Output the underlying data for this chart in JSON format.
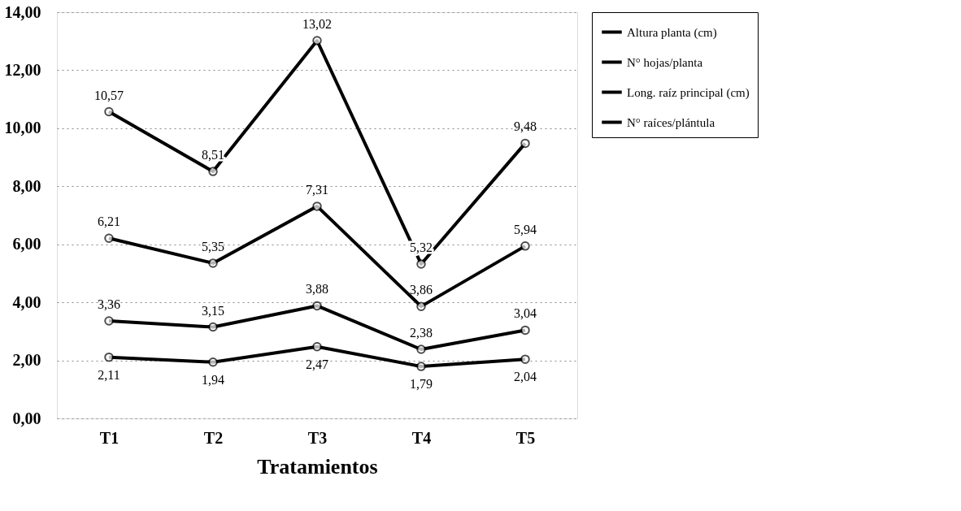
{
  "chart_data": {
    "type": "line",
    "xlabel": "Tratamientos",
    "categories": [
      "T1",
      "T2",
      "T3",
      "T4",
      "T5"
    ],
    "series": [
      {
        "name": "Altura planta (cm)",
        "color": "#000000",
        "values": [
          10.57,
          8.51,
          13.02,
          5.32,
          9.48
        ],
        "value_labels": [
          "10,57",
          "8,51",
          "13,02",
          "5,32",
          "9,48"
        ]
      },
      {
        "name": "N° hojas/planta",
        "color": "#000000",
        "values": [
          6.21,
          5.35,
          7.31,
          3.86,
          5.94
        ],
        "value_labels": [
          "6,21",
          "5,35",
          "7,31",
          "3,86",
          "5,94"
        ]
      },
      {
        "name": "Long. raíz principal (cm)",
        "color": "#000000",
        "values": [
          3.36,
          3.15,
          3.88,
          2.38,
          3.04
        ],
        "value_labels": [
          "3,36",
          "3,15",
          "3,88",
          "2,38",
          "3,04"
        ]
      },
      {
        "name": "N° raíces/plántula",
        "color": "#000000",
        "values": [
          2.11,
          1.94,
          2.47,
          1.79,
          2.04
        ],
        "value_labels": [
          "2,11",
          "1,94",
          "2,47",
          "1,79",
          "2,04"
        ]
      }
    ],
    "ylim": [
      0,
      14
    ],
    "yticks": [
      {
        "value": 0,
        "label": "0,00"
      },
      {
        "value": 2,
        "label": "2,00"
      },
      {
        "value": 4,
        "label": "4,00"
      },
      {
        "value": 6,
        "label": "6,00"
      },
      {
        "value": 8,
        "label": "8,00"
      },
      {
        "value": 10,
        "label": "10,00"
      },
      {
        "value": 12,
        "label": "12,00"
      },
      {
        "value": 14,
        "label": "14,00"
      }
    ],
    "grid": "y",
    "legend": "top right",
    "marker": "circle",
    "line_style": "solid"
  }
}
